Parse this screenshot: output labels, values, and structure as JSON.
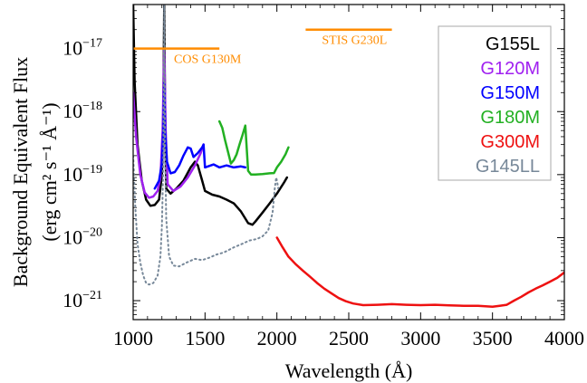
{
  "chart_data": {
    "type": "line",
    "title": "",
    "xlabel": "Wavelength (Å)",
    "ylabel_line1": "Background Equivalent Flux",
    "ylabel_line2": "(erg cm² s⁻¹ Å⁻¹)",
    "xlim": [
      1000,
      4000
    ],
    "ylim": [
      5e-22,
      5e-17
    ],
    "yscale": "log",
    "x_ticks": [
      1000,
      1500,
      2000,
      2500,
      3000,
      3500,
      4000
    ],
    "x_tick_labels": [
      "1000",
      "1500",
      "2000",
      "2500",
      "3000",
      "3500",
      "4000"
    ],
    "y_ticks": [
      1e-21,
      1e-20,
      1e-19,
      1e-18,
      1e-17
    ],
    "y_tick_labels": [
      {
        "base": "10",
        "exp": "−21"
      },
      {
        "base": "10",
        "exp": "−20"
      },
      {
        "base": "10",
        "exp": "−19"
      },
      {
        "base": "10",
        "exp": "−18"
      },
      {
        "base": "10",
        "exp": "−17"
      }
    ],
    "legend_placement": "top-right",
    "series": [
      {
        "name": "G155L",
        "color": "#000000",
        "style": "solid",
        "x": [
          1000,
          1010,
          1030,
          1060,
          1090,
          1120,
          1150,
          1180,
          1200,
          1210,
          1216,
          1222,
          1230,
          1260,
          1300,
          1350,
          1400,
          1430,
          1450,
          1480,
          1500,
          1550,
          1600,
          1650,
          1700,
          1750,
          1800,
          1830,
          1850,
          1900,
          1950,
          2000,
          2050,
          2070
        ],
        "y": [
          5e-17,
          3e-18,
          3e-19,
          8e-20,
          4e-20,
          3.2e-20,
          3.3e-20,
          4e-20,
          1e-19,
          1e-18,
          5e-17,
          1e-18,
          6e-20,
          5e-20,
          6e-20,
          8e-20,
          1.3e-19,
          1.6e-19,
          1.4e-19,
          8e-20,
          5.5e-20,
          4.8e-20,
          4.5e-20,
          4e-20,
          3.5e-20,
          2.6e-20,
          1.7e-20,
          1.6e-20,
          1.8e-20,
          2.5e-20,
          3.5e-20,
          5e-20,
          7.5e-20,
          9e-20
        ]
      },
      {
        "name": "G120M",
        "color": "#a020f0",
        "style": "solid",
        "x": [
          1000,
          1020,
          1050,
          1080,
          1110,
          1140,
          1170,
          1190,
          1205,
          1216,
          1226,
          1240,
          1280,
          1330,
          1380,
          1430,
          1470,
          1490
        ],
        "y": [
          2e-18,
          4e-19,
          1e-19,
          5.2e-20,
          4.3e-20,
          4.5e-20,
          5.5e-20,
          9e-20,
          5e-19,
          1e-17,
          5e-19,
          7e-20,
          5.5e-20,
          6.5e-20,
          9e-20,
          1.4e-19,
          2.2e-19,
          3e-19
        ]
      },
      {
        "name": "G150M",
        "color": "#0000ff",
        "style": "solid",
        "x": [
          1150,
          1180,
          1200,
          1210,
          1216,
          1222,
          1235,
          1260,
          1290,
          1320,
          1350,
          1380,
          1400,
          1420,
          1450,
          1480,
          1490,
          1500,
          1520,
          1560,
          1600,
          1650,
          1700,
          1750,
          1780
        ],
        "y": [
          6e-20,
          8e-20,
          1.5e-19,
          5e-19,
          3e-18,
          5e-19,
          1.6e-19,
          1.05e-19,
          1.1e-19,
          1.4e-19,
          2e-19,
          2.7e-19,
          2.6e-19,
          1.9e-19,
          2.2e-19,
          2.7e-19,
          3e-19,
          1.3e-19,
          1.35e-19,
          1.45e-19,
          1.3e-19,
          1.4e-19,
          1.3e-19,
          1.35e-19,
          1.3e-19
        ]
      },
      {
        "name": "G180M",
        "color": "#22b022",
        "style": "solid",
        "x": [
          1600,
          1620,
          1640,
          1660,
          1680,
          1700,
          1720,
          1740,
          1760,
          1780,
          1800,
          1820,
          1850,
          1900,
          1950,
          1980,
          2000,
          2030,
          2060,
          2080
        ],
        "y": [
          7e-19,
          5.5e-19,
          3.5e-19,
          2.3e-19,
          1.5e-19,
          1.7e-19,
          2.1e-19,
          3e-19,
          4.2e-19,
          6e-19,
          1.15e-19,
          1e-19,
          1e-19,
          1.02e-19,
          1.05e-19,
          1.06e-19,
          1.3e-19,
          1.6e-19,
          2.1e-19,
          2.7e-19
        ]
      },
      {
        "name": "G300M",
        "color": "#ee1111",
        "style": "solid",
        "x": [
          2000,
          2040,
          2080,
          2130,
          2180,
          2230,
          2280,
          2330,
          2380,
          2430,
          2480,
          2530,
          2600,
          2700,
          2800,
          2900,
          3000,
          3100,
          3200,
          3300,
          3400,
          3500,
          3550,
          3600,
          3650,
          3700,
          3750,
          3800,
          3850,
          3900,
          3950,
          4000
        ],
        "y": [
          1e-20,
          7e-21,
          5e-21,
          3.8e-21,
          3e-21,
          2.4e-21,
          1.9e-21,
          1.55e-21,
          1.3e-21,
          1.1e-21,
          9.8e-22,
          9e-22,
          8.5e-22,
          8.6e-22,
          8.8e-22,
          8.6e-22,
          8.5e-22,
          8.6e-22,
          8.4e-22,
          8.3e-22,
          8.3e-22,
          8e-22,
          8.3e-22,
          8.6e-22,
          1e-21,
          1.15e-21,
          1.35e-21,
          1.55e-21,
          1.75e-21,
          2e-21,
          2.3e-21,
          2.8e-21
        ]
      },
      {
        "name": "G145LL",
        "color": "#778899",
        "style": "dotted",
        "x": [
          1000,
          1015,
          1030,
          1050,
          1070,
          1090,
          1110,
          1140,
          1170,
          1190,
          1200,
          1210,
          1216,
          1222,
          1230,
          1250,
          1280,
          1320,
          1370,
          1430,
          1480,
          1530,
          1580,
          1630,
          1700,
          1760,
          1810,
          1860,
          1900,
          1940,
          1970,
          1985,
          1995,
          2000,
          2010
        ],
        "y": [
          2e-19,
          3e-20,
          8e-21,
          4e-21,
          2.5e-21,
          1.9e-21,
          1.8e-21,
          1.9e-21,
          2.5e-21,
          5e-21,
          1.5e-20,
          1.5e-19,
          5e-17,
          2.5e-19,
          2e-20,
          5e-21,
          3.6e-21,
          3.5e-21,
          4e-21,
          4.6e-21,
          4.4e-21,
          4.8e-21,
          5.4e-21,
          5.8e-21,
          7e-21,
          8e-21,
          9e-21,
          9.5e-21,
          1.05e-20,
          1.3e-20,
          2.5e-20,
          6e-20,
          9e-20,
          8e-20,
          6e-20
        ]
      }
    ],
    "annotations": [
      {
        "text": "COS G130M",
        "x1": 1000,
        "x2": 1600,
        "y": 1e-17,
        "color": "#ff8c00"
      },
      {
        "text": "STIS G230L",
        "x1": 2200,
        "x2": 2800,
        "y": 2e-17,
        "color": "#ff8c00"
      }
    ]
  }
}
